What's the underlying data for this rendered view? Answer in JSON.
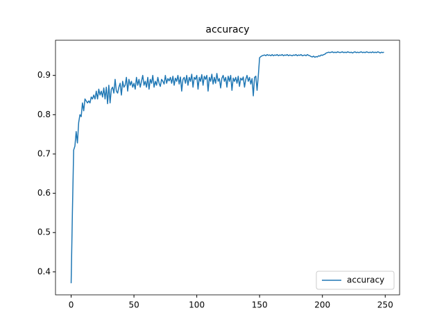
{
  "chart_data": {
    "type": "line",
    "title": "accuracy",
    "x": [
      0,
      1,
      2,
      3,
      4,
      5,
      6,
      7,
      8,
      9,
      10,
      11,
      12,
      13,
      14,
      15,
      16,
      17,
      18,
      19,
      20,
      21,
      22,
      23,
      24,
      25,
      26,
      27,
      28,
      29,
      30,
      31,
      32,
      33,
      34,
      35,
      36,
      37,
      38,
      39,
      40,
      41,
      42,
      43,
      44,
      45,
      46,
      47,
      48,
      49,
      50,
      51,
      52,
      53,
      54,
      55,
      56,
      57,
      58,
      59,
      60,
      61,
      62,
      63,
      64,
      65,
      66,
      67,
      68,
      69,
      70,
      71,
      72,
      73,
      74,
      75,
      76,
      77,
      78,
      79,
      80,
      81,
      82,
      83,
      84,
      85,
      86,
      87,
      88,
      89,
      90,
      91,
      92,
      93,
      94,
      95,
      96,
      97,
      98,
      99,
      100,
      101,
      102,
      103,
      104,
      105,
      106,
      107,
      108,
      109,
      110,
      111,
      112,
      113,
      114,
      115,
      116,
      117,
      118,
      119,
      120,
      121,
      122,
      123,
      124,
      125,
      126,
      127,
      128,
      129,
      130,
      131,
      132,
      133,
      134,
      135,
      136,
      137,
      138,
      139,
      140,
      141,
      142,
      143,
      144,
      145,
      146,
      147,
      148,
      149,
      150,
      151,
      152,
      153,
      154,
      155,
      156,
      157,
      158,
      159,
      160,
      161,
      162,
      163,
      164,
      165,
      166,
      167,
      168,
      169,
      170,
      171,
      172,
      173,
      174,
      175,
      176,
      177,
      178,
      179,
      180,
      181,
      182,
      183,
      184,
      185,
      186,
      187,
      188,
      189,
      190,
      191,
      192,
      193,
      194,
      195,
      196,
      197,
      198,
      199,
      200,
      201,
      202,
      203,
      204,
      205,
      206,
      207,
      208,
      209,
      210,
      211,
      212,
      213,
      214,
      215,
      216,
      217,
      218,
      219,
      220,
      221,
      222,
      223,
      224,
      225,
      226,
      227,
      228,
      229,
      230,
      231,
      232,
      233,
      234,
      235,
      236,
      237,
      238,
      239,
      240,
      241,
      242,
      243,
      244,
      245,
      246,
      247,
      248,
      249
    ],
    "series": [
      {
        "name": "accuracy",
        "color": "#1f77b4",
        "values": [
          0.371,
          0.55,
          0.71,
          0.72,
          0.757,
          0.728,
          0.78,
          0.8,
          0.795,
          0.83,
          0.81,
          0.84,
          0.835,
          0.83,
          0.835,
          0.83,
          0.845,
          0.84,
          0.85,
          0.84,
          0.86,
          0.84,
          0.865,
          0.85,
          0.86,
          0.845,
          0.868,
          0.84,
          0.87,
          0.828,
          0.875,
          0.83,
          0.865,
          0.87,
          0.855,
          0.89,
          0.86,
          0.855,
          0.87,
          0.88,
          0.85,
          0.885,
          0.87,
          0.875,
          0.895,
          0.86,
          0.89,
          0.875,
          0.885,
          0.87,
          0.88,
          0.865,
          0.895,
          0.875,
          0.89,
          0.87,
          0.885,
          0.9,
          0.875,
          0.885,
          0.87,
          0.895,
          0.865,
          0.89,
          0.88,
          0.9,
          0.87,
          0.885,
          0.875,
          0.895,
          0.88,
          0.872,
          0.89,
          0.885,
          0.878,
          0.9,
          0.88,
          0.892,
          0.886,
          0.895,
          0.88,
          0.898,
          0.875,
          0.893,
          0.885,
          0.9,
          0.878,
          0.896,
          0.86,
          0.89,
          0.895,
          0.88,
          0.9,
          0.875,
          0.895,
          0.885,
          0.903,
          0.87,
          0.895,
          0.89,
          0.9,
          0.865,
          0.895,
          0.885,
          0.902,
          0.875,
          0.898,
          0.89,
          0.9,
          0.86,
          0.895,
          0.885,
          0.903,
          0.878,
          0.895,
          0.88,
          0.905,
          0.885,
          0.892,
          0.868,
          0.893,
          0.9,
          0.885,
          0.895,
          0.87,
          0.898,
          0.885,
          0.9,
          0.862,
          0.893,
          0.885,
          0.895,
          0.88,
          0.898,
          0.872,
          0.893,
          0.888,
          0.896,
          0.87,
          0.89,
          0.9,
          0.885,
          0.895,
          0.878,
          0.892,
          0.848,
          0.895,
          0.898,
          0.862,
          0.9,
          0.945,
          0.948,
          0.95,
          0.951,
          0.952,
          0.95,
          0.953,
          0.951,
          0.952,
          0.95,
          0.953,
          0.95,
          0.952,
          0.951,
          0.953,
          0.95,
          0.952,
          0.951,
          0.953,
          0.95,
          0.952,
          0.951,
          0.953,
          0.95,
          0.952,
          0.951,
          0.95,
          0.952,
          0.951,
          0.953,
          0.95,
          0.952,
          0.951,
          0.953,
          0.95,
          0.951,
          0.952,
          0.95,
          0.953,
          0.951,
          0.95,
          0.948,
          0.947,
          0.949,
          0.946,
          0.948,
          0.947,
          0.95,
          0.949,
          0.952,
          0.951,
          0.953,
          0.954,
          0.957,
          0.958,
          0.959,
          0.958,
          0.959,
          0.96,
          0.958,
          0.959,
          0.958,
          0.96,
          0.959,
          0.958,
          0.959,
          0.96,
          0.958,
          0.959,
          0.958,
          0.96,
          0.959,
          0.958,
          0.959,
          0.957,
          0.959,
          0.96,
          0.958,
          0.959,
          0.958,
          0.959,
          0.96,
          0.958,
          0.959,
          0.958,
          0.96,
          0.959,
          0.958,
          0.959,
          0.958,
          0.96,
          0.958,
          0.959,
          0.958,
          0.96,
          0.959,
          0.957,
          0.959,
          0.958,
          0.959
        ]
      }
    ],
    "xlim": [
      -12.45,
      261.45
    ],
    "xticks": [
      0,
      50,
      100,
      150,
      200,
      250
    ],
    "ylim": [
      0.3415,
      0.9895
    ],
    "yticks": [
      0.4,
      0.5,
      0.6,
      0.7,
      0.8,
      0.9
    ],
    "legend": "lower right"
  }
}
